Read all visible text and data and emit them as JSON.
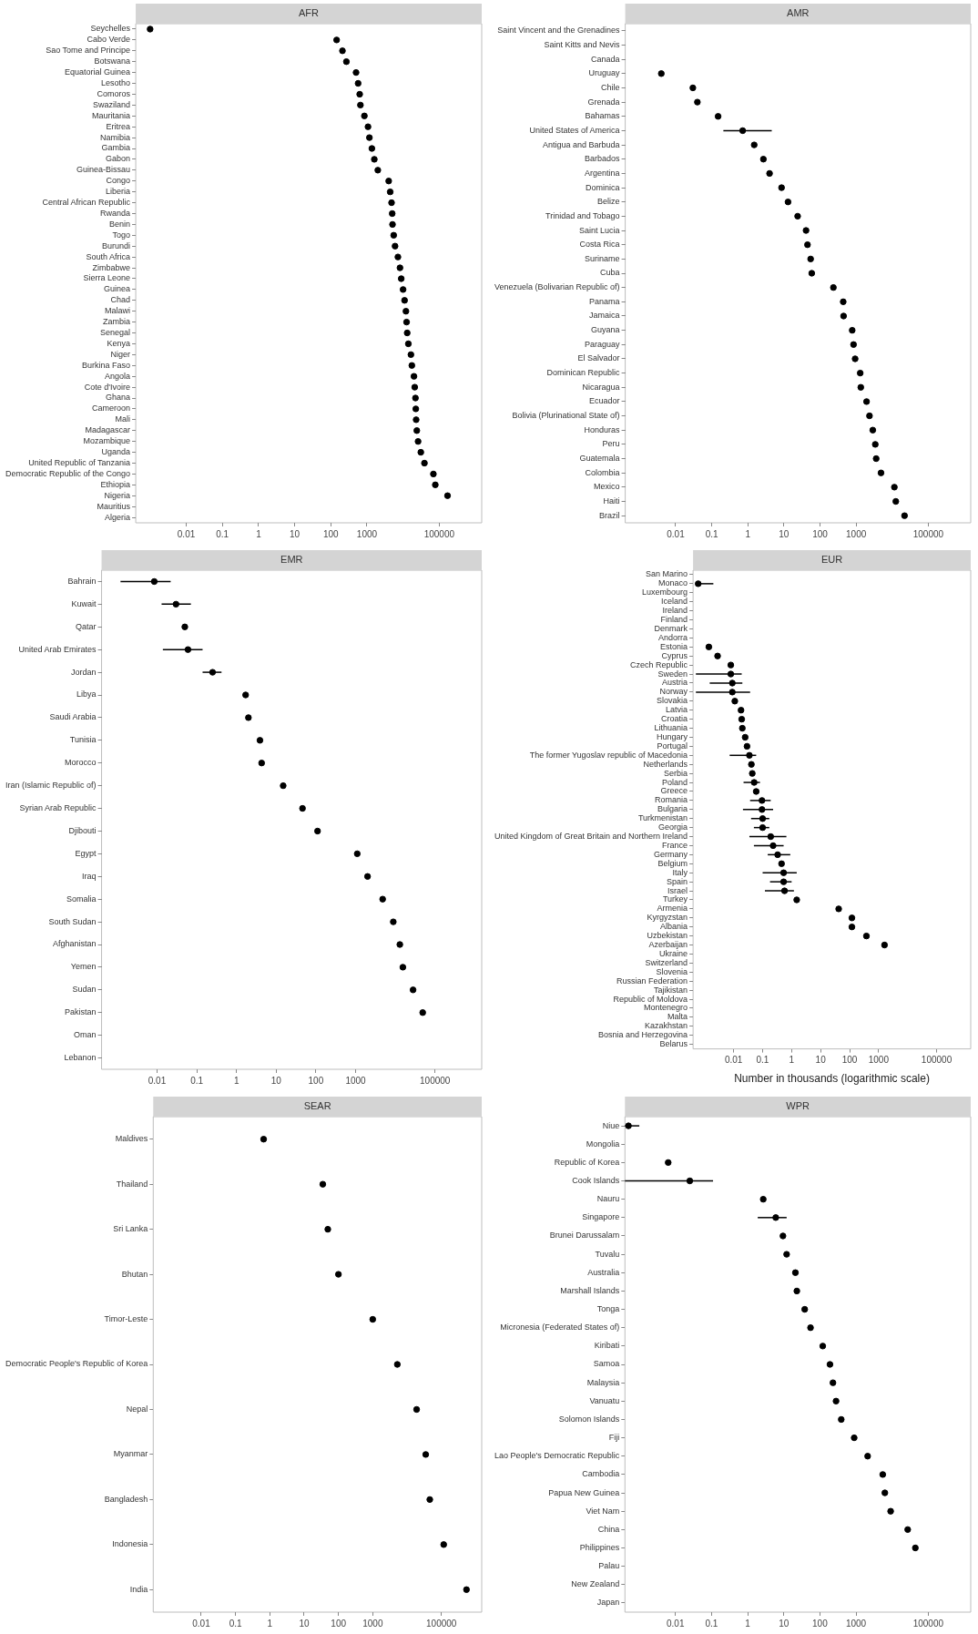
{
  "chart_data": [
    {
      "type": "scatter",
      "orientation": "horizontal",
      "title": "AFR",
      "log": "x",
      "marker": "circle",
      "xlim": [
        0.0004,
        1500000
      ],
      "xticks": [
        0.01,
        0.1,
        1,
        10,
        100,
        1000,
        100000
      ],
      "categories": [
        "Seychelles",
        "Cabo Verde",
        "Sao Tome and Principe",
        "Botswana",
        "Equatorial Guinea",
        "Lesotho",
        "Comoros",
        "Swaziland",
        "Mauritania",
        "Eritrea",
        "Namibia",
        "Gambia",
        "Gabon",
        "Guinea-Bissau",
        "Congo",
        "Liberia",
        "Central African Republic",
        "Rwanda",
        "Benin",
        "Togo",
        "Burundi",
        "South Africa",
        "Zimbabwe",
        "Sierra Leone",
        "Guinea",
        "Chad",
        "Malawi",
        "Zambia",
        "Senegal",
        "Kenya",
        "Niger",
        "Burkina Faso",
        "Angola",
        "Cote d'Ivoire",
        "Ghana",
        "Cameroon",
        "Mali",
        "Madagascar",
        "Mozambique",
        "Uganda",
        "United Republic of Tanzania",
        "Democratic Republic of the Congo",
        "Ethiopia",
        "Nigeria",
        "Mauritius",
        "Algeria"
      ],
      "series": [
        {
          "color": "#000000",
          "values": [
            0.001,
            145,
            210,
            270,
            500,
            570,
            630,
            660,
            850,
            1070,
            1170,
            1370,
            1600,
            2000,
            4000,
            4400,
            4800,
            5000,
            5100,
            5500,
            6000,
            7200,
            8200,
            8900,
            10000,
            11000,
            12000,
            12500,
            13000,
            14000,
            16500,
            17500,
            20000,
            21000,
            22000,
            22500,
            23000,
            24000,
            26000,
            31000,
            39000,
            69000,
            78000,
            170000,
            null,
            null
          ]
        }
      ]
    },
    {
      "type": "scatter",
      "orientation": "horizontal",
      "title": "AMR",
      "log": "x",
      "marker": "circle",
      "xlim": [
        0.0004,
        1500000
      ],
      "xticks": [
        0.01,
        0.1,
        1,
        10,
        100,
        1000,
        100000
      ],
      "categories": [
        "Saint Vincent and the Grenadines",
        "Saint Kitts and Nevis",
        "Canada",
        "Uruguay",
        "Chile",
        "Grenada",
        "Bahamas",
        "United States of America",
        "Antigua and Barbuda",
        "Barbados",
        "Argentina",
        "Dominica",
        "Belize",
        "Trinidad and Tobago",
        "Saint Lucia",
        "Costa Rica",
        "Suriname",
        "Cuba",
        "Venezuela (Bolivarian Republic of)",
        "Panama",
        "Jamaica",
        "Guyana",
        "Paraguay",
        "El Salvador",
        "Dominican Republic",
        "Nicaragua",
        "Ecuador",
        "Bolivia (Plurinational State of)",
        "Honduras",
        "Peru",
        "Guatemala",
        "Colombia",
        "Mexico",
        "Haiti",
        "Brazil"
      ],
      "series": [
        {
          "color": "#000000",
          "values": [
            null,
            null,
            null,
            0.004,
            0.03,
            0.04,
            0.15,
            0.72,
            1.5,
            2.7,
            4,
            8.6,
            13,
            24,
            41,
            45,
            55,
            59,
            235,
            440,
            450,
            780,
            850,
            940,
            1300,
            1350,
            1950,
            2350,
            2900,
            3400,
            3600,
            4900,
            11500,
            12600,
            22000
          ],
          "errors": [
            null,
            null,
            null,
            null,
            null,
            null,
            null,
            [
              0.21,
              4.6
            ],
            null,
            null,
            null,
            null,
            null,
            null,
            null,
            null,
            null,
            null,
            null,
            null,
            null,
            null,
            null,
            null,
            null,
            null,
            null,
            null,
            null,
            null,
            null,
            null,
            null,
            null,
            null
          ]
        }
      ]
    },
    {
      "type": "scatter",
      "orientation": "horizontal",
      "title": "EMR",
      "log": "x",
      "marker": "circle",
      "xlim": [
        0.0004,
        1500000
      ],
      "xticks": [
        0.01,
        0.1,
        1,
        10,
        100,
        1000,
        100000
      ],
      "categories": [
        "Bahrain",
        "Kuwait",
        "Qatar",
        "United Arab Emirates",
        "Jordan",
        "Libya",
        "Saudi Arabia",
        "Tunisia",
        "Morocco",
        "Iran (Islamic Republic of)",
        "Syrian Arab Republic",
        "Djibouti",
        "Egypt",
        "Iraq",
        "Somalia",
        "South Sudan",
        "Afghanistan",
        "Yemen",
        "Sudan",
        "Pakistan",
        "Oman",
        "Lebanon"
      ],
      "series": [
        {
          "color": "#000000",
          "values": [
            0.0085,
            0.03,
            0.05,
            0.06,
            0.25,
            1.7,
            2,
            3.9,
            4.3,
            15,
            46,
            110,
            1100,
            2000,
            4800,
            8900,
            13000,
            15500,
            28000,
            49000,
            null,
            null
          ],
          "errors": [
            [
              0.0012,
              0.022
            ],
            [
              0.013,
              0.071
            ],
            null,
            [
              0.014,
              0.14
            ],
            [
              0.14,
              0.42
            ],
            null,
            null,
            null,
            null,
            null,
            null,
            null,
            null,
            null,
            null,
            null,
            null,
            null,
            null,
            null,
            null,
            null
          ]
        }
      ]
    },
    {
      "type": "scatter",
      "orientation": "horizontal",
      "title": "EUR",
      "xlabel": "Number in thousands (logarithmic scale)",
      "log": "x",
      "marker": "circle",
      "xlim": [
        0.0004,
        1500000
      ],
      "xticks": [
        0.01,
        0.1,
        1,
        10,
        100,
        1000,
        100000
      ],
      "categories": [
        "San Marino",
        "Monaco",
        "Luxembourg",
        "Iceland",
        "Ireland",
        "Finland",
        "Denmark",
        "Andorra",
        "Estonia",
        "Cyprus",
        "Czech Republic",
        "Sweden",
        "Austria",
        "Norway",
        "Slovakia",
        "Latvia",
        "Croatia",
        "Lithuania",
        "Hungary",
        "Portugal",
        "The former Yugoslav republic of Macedonia",
        "Netherlands",
        "Serbia",
        "Poland",
        "Greece",
        "Romania",
        "Bulgaria",
        "Turkmenistan",
        "Georgia",
        "United Kingdom of Great Britain and Northern Ireland",
        "France",
        "Germany",
        "Belgium",
        "Italy",
        "Spain",
        "Israel",
        "Turkey",
        "Armenia",
        "Kyrgyzstan",
        "Albania",
        "Uzbekistan",
        "Azerbaijan",
        "Ukraine",
        "Switzerland",
        "Slovenia",
        "Russian Federation",
        "Tajikistan",
        "Republic of Moldova",
        "Montenegro",
        "Malta",
        "Kazakhstan",
        "Bosnia and Herzegovina",
        "Belarus"
      ],
      "series": [
        {
          "color": "#000000",
          "values": [
            null,
            0.0006,
            null,
            null,
            null,
            null,
            null,
            null,
            0.0014,
            0.0028,
            0.008,
            0.008,
            0.009,
            0.009,
            0.011,
            0.018,
            0.019,
            0.02,
            0.025,
            0.029,
            0.035,
            0.041,
            0.044,
            0.051,
            0.06,
            0.095,
            0.095,
            0.1,
            0.1,
            0.19,
            0.23,
            0.33,
            0.45,
            0.53,
            0.53,
            0.57,
            1.5,
            42,
            120,
            120,
            380,
            1600,
            null,
            null,
            null,
            null,
            null,
            null,
            null,
            null,
            null,
            null,
            null
          ],
          "errors": [
            null,
            [
              0.0005,
              0.002
            ],
            null,
            null,
            null,
            null,
            null,
            null,
            null,
            null,
            null,
            [
              0.0005,
              0.019
            ],
            [
              0.0015,
              0.02
            ],
            [
              0.0005,
              0.037
            ],
            null,
            null,
            null,
            null,
            null,
            null,
            [
              0.0073,
              0.06
            ],
            null,
            null,
            [
              0.022,
              0.081
            ],
            null,
            [
              0.037,
              0.19
            ],
            [
              0.021,
              0.23
            ],
            [
              0.04,
              0.17
            ],
            [
              0.05,
              0.17
            ],
            [
              0.035,
              0.66
            ],
            [
              0.05,
              0.53
            ],
            [
              0.15,
              0.9
            ],
            null,
            [
              0.1,
              1.5
            ],
            [
              0.18,
              1
            ],
            [
              0.12,
              1.2
            ],
            null,
            null,
            null,
            null,
            null,
            null,
            null,
            null,
            null,
            null,
            null,
            null,
            null,
            null,
            null,
            null,
            null
          ]
        }
      ]
    },
    {
      "type": "scatter",
      "orientation": "horizontal",
      "title": "SEAR",
      "log": "x",
      "marker": "circle",
      "xlim": [
        0.0004,
        1500000
      ],
      "xticks": [
        0.01,
        0.1,
        1,
        10,
        100,
        1000,
        100000
      ],
      "categories": [
        "Maldives",
        "Thailand",
        "Sri Lanka",
        "Bhutan",
        "Timor-Leste",
        "Democratic People's Republic of Korea",
        "Nepal",
        "Myanmar",
        "Bangladesh",
        "Indonesia",
        "India"
      ],
      "series": [
        {
          "color": "#000000",
          "values": [
            0.66,
            35,
            49,
            100,
            1000,
            5200,
            19000,
            35000,
            46000,
            117000,
            540000
          ]
        }
      ]
    },
    {
      "type": "scatter",
      "orientation": "horizontal",
      "title": "WPR",
      "log": "x",
      "marker": "circle",
      "xlim": [
        0.0004,
        1500000
      ],
      "xticks": [
        0.01,
        0.1,
        1,
        10,
        100,
        1000,
        100000
      ],
      "categories": [
        "Niue",
        "Mongolia",
        "Republic of Korea",
        "Cook Islands",
        "Nauru",
        "Singapore",
        "Brunei Darussalam",
        "Tuvalu",
        "Australia",
        "Marshall Islands",
        "Tonga",
        "Micronesia (Federated States of)",
        "Kiribati",
        "Samoa",
        "Malaysia",
        "Vanuatu",
        "Solomon Islands",
        "Fiji",
        "Lao People's Democratic Republic",
        "Cambodia",
        "Papua New Guinea",
        "Viet Nam",
        "China",
        "Philippines",
        "Palau",
        "New Zealand",
        "Japan"
      ],
      "series": [
        {
          "color": "#000000",
          "values": [
            0.0005,
            null,
            0.0063,
            0.025,
            2.7,
            6,
            9.5,
            12,
            21,
            23,
            38,
            55,
            120,
            190,
            230,
            280,
            390,
            890,
            2100,
            5500,
            6300,
            9100,
            27000,
            44000,
            null,
            null,
            null
          ],
          "errors": [
            [
              0.0004,
              0.001
            ],
            null,
            null,
            [
              0.0004,
              0.11
            ],
            null,
            [
              1.9,
              12
            ],
            null,
            null,
            null,
            null,
            null,
            null,
            null,
            null,
            null,
            null,
            null,
            null,
            null,
            null,
            null,
            null,
            null,
            null,
            null,
            null,
            null
          ]
        }
      ]
    }
  ]
}
